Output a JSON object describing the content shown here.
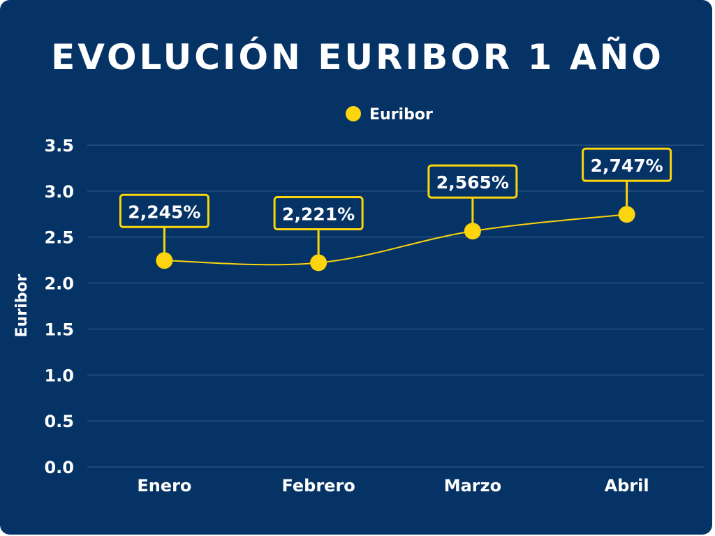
{
  "chart_data": {
    "type": "line",
    "title": "EVOLUCIÓN EURIBOR 1 AÑO",
    "ylabel": "Euribor",
    "xlabel": "",
    "categories": [
      "Enero",
      "Febrero",
      "Marzo",
      "Abril"
    ],
    "series": [
      {
        "name": "Euribor",
        "values": [
          2.245,
          2.221,
          2.565,
          2.747
        ],
        "labels": [
          "2,245%",
          "2,221%",
          "2,565%",
          "2,747%"
        ]
      }
    ],
    "ylim": [
      0,
      3.5
    ],
    "yticks": [
      "0.0",
      "0.5",
      "1.0",
      "1.5",
      "2.0",
      "2.5",
      "3.0",
      "3.5"
    ],
    "legend": "top-center",
    "grid": true,
    "colors": {
      "background": "#053366",
      "series": "#fcd50c",
      "text": "#ffffff",
      "grid": "#3a5f8c"
    }
  }
}
